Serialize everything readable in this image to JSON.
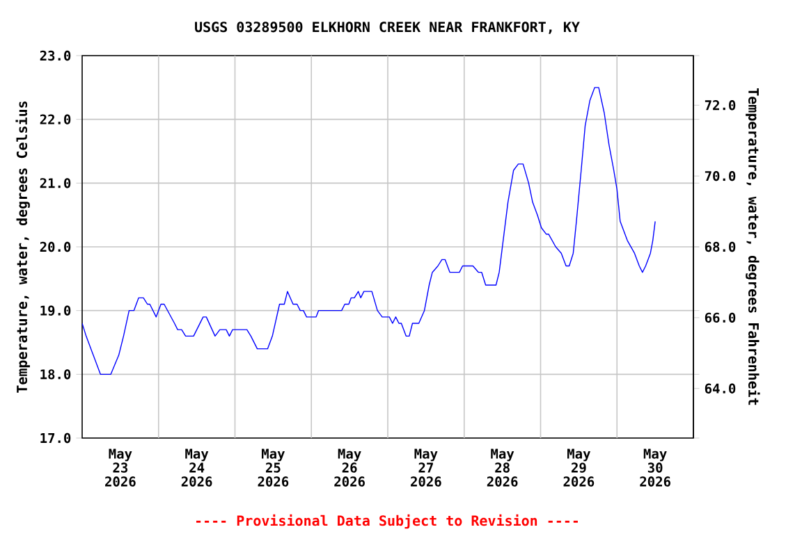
{
  "chart_data": {
    "type": "line",
    "title": "USGS 03289500 ELKHORN CREEK NEAR FRANKFORT, KY",
    "ylabel": "Temperature, water, degrees Celsius",
    "y2label": "Temperature, water, degrees Fahrenheit",
    "annotations": [
      "---- Provisional Data Subject to Revision ----"
    ],
    "xlim": [
      "2026-05-23T00:00",
      "2026-05-31T00:00"
    ],
    "xticks": [
      {
        "value": "2026-05-23T12:00",
        "label": "May 23 2026"
      },
      {
        "value": "2026-05-24T00:00",
        "label": null
      },
      {
        "value": "2026-05-24T12:00",
        "label": "May 24 2026"
      },
      {
        "value": "2026-05-25T00:00",
        "label": null
      },
      {
        "value": "2026-05-25T12:00",
        "label": "May 25 2026"
      },
      {
        "value": "2026-05-26T00:00",
        "label": null
      },
      {
        "value": "2026-05-26T12:00",
        "label": "May 26 2026"
      },
      {
        "value": "2026-05-27T00:00",
        "label": null
      },
      {
        "value": "2026-05-27T12:00",
        "label": "May 27 2026"
      },
      {
        "value": "2026-05-28T00:00",
        "label": null
      },
      {
        "value": "2026-05-28T12:00",
        "label": "May 28 2026"
      },
      {
        "value": "2026-05-29T00:00",
        "label": null
      },
      {
        "value": "2026-05-29T12:00",
        "label": "May 29 2026"
      },
      {
        "value": "2026-05-30T00:00",
        "label": null
      },
      {
        "value": "2026-05-30T12:00",
        "label": "May 30 2026"
      }
    ],
    "ylim": [
      17,
      23
    ],
    "yticks": [
      {
        "value": 17,
        "label": "17.0"
      },
      {
        "value": 18,
        "label": "18.0"
      },
      {
        "value": 19,
        "label": "19.0"
      },
      {
        "value": 20,
        "label": "20.0"
      },
      {
        "value": 21,
        "label": "21.0"
      },
      {
        "value": 22,
        "label": "22.0"
      },
      {
        "value": 23,
        "label": "23.0"
      }
    ],
    "y2lim": [
      62.6,
      73.4
    ],
    "y2ticks": [
      {
        "value": 64,
        "label": "64.0"
      },
      {
        "value": 66,
        "label": "66.0"
      },
      {
        "value": 68,
        "label": "68.0"
      },
      {
        "value": 70,
        "label": "70.0"
      },
      {
        "value": 72,
        "label": "72.0"
      }
    ],
    "grid": true,
    "series": [
      {
        "color": "#0000ff",
        "x": [
          "2026-05-23T00:00",
          "2026-05-23T01:15",
          "2026-05-23T03:30",
          "2026-05-23T05:45",
          "2026-05-23T09:00",
          "2026-05-23T11:30",
          "2026-05-23T13:00",
          "2026-05-23T14:45",
          "2026-05-23T16:15",
          "2026-05-23T17:45",
          "2026-05-23T19:15",
          "2026-05-23T20:30",
          "2026-05-23T21:15",
          "2026-05-23T23:15",
          "2026-05-24T00:45",
          "2026-05-24T01:45",
          "2026-05-24T05:00",
          "2026-05-24T06:00",
          "2026-05-24T07:15",
          "2026-05-24T08:30",
          "2026-05-24T11:00",
          "2026-05-24T14:00",
          "2026-05-24T15:00",
          "2026-05-24T17:45",
          "2026-05-24T19:15",
          "2026-05-24T21:15",
          "2026-05-24T22:15",
          "2026-05-24T23:15",
          "2026-05-25T03:45",
          "2026-05-25T05:00",
          "2026-05-25T07:00",
          "2026-05-25T10:15",
          "2026-05-25T11:45",
          "2026-05-25T14:00",
          "2026-05-25T15:30",
          "2026-05-25T16:30",
          "2026-05-25T18:15",
          "2026-05-25T19:30",
          "2026-05-25T20:30",
          "2026-05-25T21:30",
          "2026-05-25T22:30",
          "2026-05-26T01:30",
          "2026-05-26T02:15",
          "2026-05-26T09:30",
          "2026-05-26T10:30",
          "2026-05-26T11:45",
          "2026-05-26T12:30",
          "2026-05-26T13:30",
          "2026-05-26T14:45",
          "2026-05-26T15:30",
          "2026-05-26T16:30",
          "2026-05-26T19:00",
          "2026-05-26T20:45",
          "2026-05-26T22:15",
          "2026-05-27T00:30",
          "2026-05-27T01:30",
          "2026-05-27T02:30",
          "2026-05-27T03:30",
          "2026-05-27T04:15",
          "2026-05-27T05:45",
          "2026-05-27T06:45",
          "2026-05-27T07:45",
          "2026-05-27T09:45",
          "2026-05-27T11:30",
          "2026-05-27T13:00",
          "2026-05-27T14:00",
          "2026-05-27T15:45",
          "2026-05-27T17:00",
          "2026-05-27T18:00",
          "2026-05-27T19:30",
          "2026-05-27T22:30",
          "2026-05-27T23:30",
          "2026-05-28T02:45",
          "2026-05-28T04:30",
          "2026-05-28T05:30",
          "2026-05-28T06:45",
          "2026-05-28T10:00",
          "2026-05-28T11:00",
          "2026-05-28T12:30",
          "2026-05-28T13:45",
          "2026-05-28T15:30",
          "2026-05-28T17:00",
          "2026-05-28T18:30",
          "2026-05-28T20:15",
          "2026-05-28T21:30",
          "2026-05-28T23:00",
          "2026-05-29T00:15",
          "2026-05-29T01:45",
          "2026-05-29T02:30",
          "2026-05-29T04:45",
          "2026-05-29T06:30",
          "2026-05-29T08:00",
          "2026-05-29T09:00",
          "2026-05-29T10:15",
          "2026-05-29T11:15",
          "2026-05-29T12:45",
          "2026-05-29T14:00",
          "2026-05-29T15:30",
          "2026-05-29T17:00",
          "2026-05-29T18:15",
          "2026-05-29T20:00",
          "2026-05-29T21:30",
          "2026-05-29T23:00",
          "2026-05-30T00:00",
          "2026-05-30T01:00",
          "2026-05-30T03:15",
          "2026-05-30T05:30",
          "2026-05-30T07:00",
          "2026-05-30T08:00",
          "2026-05-30T09:00",
          "2026-05-30T10:30",
          "2026-05-30T11:15",
          "2026-05-30T12:00"
        ],
        "values": [
          18.8,
          18.6,
          18.3,
          18.0,
          18.0,
          18.3,
          18.6,
          19.0,
          19.0,
          19.2,
          19.2,
          19.1,
          19.1,
          18.9,
          19.1,
          19.1,
          18.8,
          18.7,
          18.7,
          18.6,
          18.6,
          18.9,
          18.9,
          18.6,
          18.7,
          18.7,
          18.6,
          18.7,
          18.7,
          18.6,
          18.4,
          18.4,
          18.6,
          19.1,
          19.1,
          19.3,
          19.1,
          19.1,
          19.0,
          19.0,
          18.9,
          18.9,
          19.0,
          19.0,
          19.1,
          19.1,
          19.2,
          19.2,
          19.3,
          19.2,
          19.3,
          19.3,
          19.0,
          18.9,
          18.9,
          18.8,
          18.9,
          18.8,
          18.8,
          18.6,
          18.6,
          18.8,
          18.8,
          19.0,
          19.4,
          19.6,
          19.7,
          19.8,
          19.8,
          19.6,
          19.6,
          19.7,
          19.7,
          19.6,
          19.6,
          19.4,
          19.4,
          19.6,
          20.2,
          20.7,
          21.2,
          21.3,
          21.3,
          21.0,
          20.7,
          20.5,
          20.3,
          20.2,
          20.2,
          20.0,
          19.9,
          19.7,
          19.7,
          19.9,
          20.4,
          21.2,
          21.9,
          22.3,
          22.5,
          22.5,
          22.1,
          21.6,
          21.2,
          20.9,
          20.4,
          20.1,
          19.9,
          19.7,
          19.6,
          19.7,
          19.9,
          20.1,
          20.4
        ]
      }
    ]
  }
}
